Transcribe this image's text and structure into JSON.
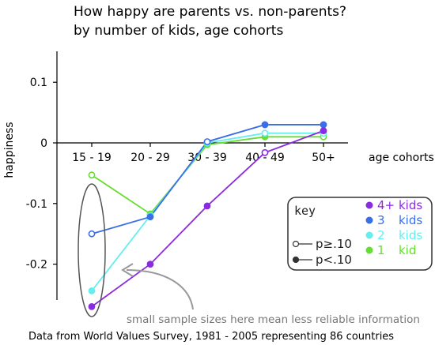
{
  "chart_data": {
    "type": "line",
    "title": "How happy are parents vs. non-parents?",
    "subtitle": "by number of kids, age cohorts",
    "ylabel": "happiness",
    "xlabel": "age cohorts",
    "categories": [
      "15 - 19",
      "20 - 29",
      "30 - 39",
      "40 - 49",
      "50+"
    ],
    "ylim": [
      -0.27,
      0.15
    ],
    "yticks": [
      0.1,
      0,
      -0.1,
      -0.2
    ],
    "ytick_labels": [
      "0.1",
      "0",
      "-0.1",
      "-0.2"
    ],
    "series": [
      {
        "name": "4+ kids",
        "color": "#8a2be2",
        "values": [
          -0.27,
          -0.2,
          -0.104,
          -0.016,
          0.02
        ],
        "open": [
          false,
          false,
          false,
          true,
          false
        ]
      },
      {
        "name": "3",
        "color": "#3a6ee8",
        "values": [
          -0.15,
          -0.122,
          0.002,
          0.03,
          0.03
        ],
        "open": [
          true,
          false,
          true,
          false,
          false
        ]
      },
      {
        "name": "2",
        "color": "#66eeee",
        "values": [
          -0.244,
          -0.12,
          0.0,
          0.016,
          0.016
        ],
        "open": [
          false,
          false,
          true,
          true,
          true
        ]
      },
      {
        "name": "1",
        "color": "#66dd33",
        "values": [
          -0.053,
          -0.117,
          -0.003,
          0.01,
          0.01
        ],
        "open": [
          true,
          false,
          false,
          false,
          true
        ]
      }
    ],
    "legend": {
      "title": "key",
      "placement": "right",
      "series_labels": [
        {
          "num": "4+",
          "word": "kids"
        },
        {
          "num": "3",
          "word": "kids"
        },
        {
          "num": "2",
          "word": "kids"
        },
        {
          "num": "1",
          "word": "kid"
        }
      ],
      "marker_labels": [
        "p≥.10",
        "p<.10"
      ]
    },
    "annotation": "small sample sizes here mean less reliable information",
    "source": "Data from World Values Survey, 1981 - 2005 representing 86 countries"
  }
}
